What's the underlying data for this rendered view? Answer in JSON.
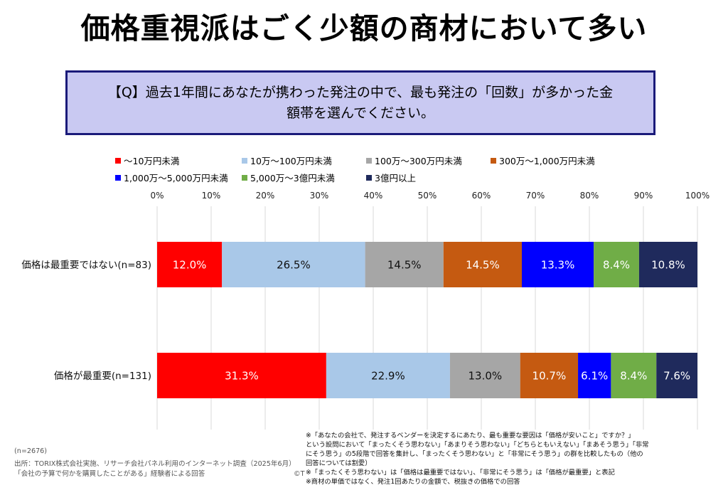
{
  "title": "価格重視派はごく少額の商材において多い",
  "question": "【Q】過去1年間にあなたが携わった発注の中で、最も発注の「回数」が多かった金額帯を選んでください。",
  "chart_data": {
    "type": "bar",
    "orientation": "horizontal-stacked-100",
    "categories": [
      "価格は最重要ではない(n=83)",
      "価格が最重要(n=131)"
    ],
    "series": [
      {
        "name": "～10万円未満",
        "color": "#ff0000",
        "values": [
          12.0,
          31.3
        ]
      },
      {
        "name": "10万～100万円未満",
        "color": "#a9c8e8",
        "values": [
          26.5,
          22.9
        ]
      },
      {
        "name": "100万～300万円未満",
        "color": "#a6a6a6",
        "values": [
          14.5,
          13.0
        ]
      },
      {
        "name": "300万～1,000万円未満",
        "color": "#c55a11",
        "values": [
          14.5,
          10.7
        ]
      },
      {
        "name": "1,000万～5,000万円未満",
        "color": "#0000ff",
        "values": [
          13.3,
          6.1
        ]
      },
      {
        "name": "5,000万～3億円未満",
        "color": "#70ad47",
        "values": [
          8.4,
          8.4
        ]
      },
      {
        "name": "3億円以上",
        "color": "#1f2a5c",
        "values": [
          10.8,
          7.6
        ]
      }
    ],
    "data_labels": [
      [
        "12.0%",
        "26.5%",
        "14.5%",
        "14.5%",
        "13.3%",
        "8.4%",
        "10.8%"
      ],
      [
        "31.3%",
        "22.9%",
        "13.0%",
        "10.7%",
        "6.1%",
        "8.4%",
        "7.6%"
      ]
    ],
    "x_ticks": [
      "0%",
      "10%",
      "20%",
      "30%",
      "40%",
      "50%",
      "60%",
      "70%",
      "80%",
      "90%",
      "100%"
    ],
    "xlim": [
      0,
      100
    ],
    "grid": true,
    "legend_position": "top"
  },
  "footer_left": [
    "(n=2676)",
    "出所：TORIX株式会社実施、リサーチ会社パネル利用のインターネット調査（2025年6月）",
    "「会社の予算で何かを購買したことがある」経験者による回答"
  ],
  "footer_right": [
    "※「あなたの会社で、発注するベンダーを決定するにあたり、最も重要な要因は「価格が安いこと」ですか？」",
    "という設問において「まったくそう思わない」「あまりそう思わない」「どちらともいえない」「まあそう思う」「非常",
    "にそう思う」の5段階で回答を集計し、「まったくそう思わない」と「非常にそう思う」の群を比較したもの（他の",
    "回答については割愛）",
    "※「まったくそう思わない」は「価格は最重要ではない」、「非常にそう思う」は「価格が最重要」と表記",
    "※商材の単価ではなく、発注1回あたりの金額で、税抜きの価格での回答"
  ],
  "copyright_mark": "©T"
}
